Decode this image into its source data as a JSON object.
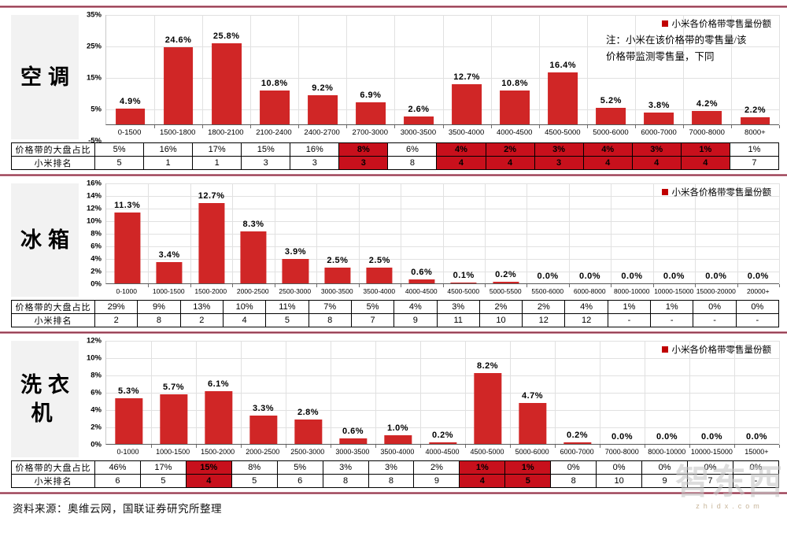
{
  "page": {
    "source_note": "资料来源：奥维云网，国联证券研究所整理",
    "watermark": "智东西",
    "watermark_sub": "zhidx.com",
    "table_row_labels": {
      "share": "价格带的大盘占比",
      "rank": "小米排名"
    },
    "colors": {
      "bar": "#d02626",
      "table_highlight": "#c8101c",
      "separator": "#7c2137",
      "gridline": "#e1e1e1"
    }
  },
  "chart_data": [
    {
      "type": "bar",
      "title": "空调",
      "legend": "小米各价格带零售量份额",
      "note": "注：小米在该价格带的零售量/该\n价格带监测零售量，下同",
      "categories": [
        "0-1500",
        "1500-1800",
        "1800-2100",
        "2100-2400",
        "2400-2700",
        "2700-3000",
        "3000-3500",
        "3500-4000",
        "4000-4500",
        "4500-5000",
        "5000-6000",
        "6000-7000",
        "7000-8000",
        "8000+"
      ],
      "values": [
        4.9,
        24.6,
        25.8,
        10.8,
        9.2,
        6.9,
        2.6,
        12.7,
        10.8,
        16.4,
        5.2,
        3.8,
        4.2,
        2.2
      ],
      "ylim": [
        -5,
        35
      ],
      "yticks": [
        "35%",
        "25%",
        "15%",
        "5%",
        "-5%"
      ],
      "grid": true,
      "legend_position": "top-right",
      "table": {
        "share": [
          "5%",
          "16%",
          "17%",
          "15%",
          "16%",
          "8%",
          "6%",
          "4%",
          "2%",
          "3%",
          "4%",
          "3%",
          "1%",
          "1%"
        ],
        "rank": [
          "5",
          "1",
          "1",
          "3",
          "3",
          "3",
          "8",
          "4",
          "4",
          "3",
          "4",
          "4",
          "4",
          "7"
        ],
        "highlight_cols": [
          5,
          7,
          8,
          9,
          10,
          11,
          12
        ]
      }
    },
    {
      "type": "bar",
      "title": "冰箱",
      "legend": "小米各价格带零售量份额",
      "note": "",
      "categories": [
        "0-1000",
        "1000-1500",
        "1500-2000",
        "2000-2500",
        "2500-3000",
        "3000-3500",
        "3500-4000",
        "4000-4500",
        "4500-5000",
        "5000-5500",
        "5500-6000",
        "6000-8000",
        "8000-10000",
        "10000-15000",
        "15000-20000",
        "20000+"
      ],
      "values": [
        11.3,
        3.4,
        12.7,
        8.3,
        3.9,
        2.5,
        2.5,
        0.6,
        0.1,
        0.2,
        0.0,
        0.0,
        0.0,
        0.0,
        0.0,
        0.0
      ],
      "ylim": [
        0,
        16
      ],
      "yticks": [
        "16%",
        "14%",
        "12%",
        "10%",
        "8%",
        "6%",
        "4%",
        "2%",
        "0%"
      ],
      "grid": true,
      "legend_position": "top-right",
      "table": {
        "share": [
          "29%",
          "9%",
          "13%",
          "10%",
          "11%",
          "7%",
          "5%",
          "4%",
          "3%",
          "2%",
          "2%",
          "4%",
          "1%",
          "1%",
          "0%",
          "0%"
        ],
        "rank": [
          "2",
          "8",
          "2",
          "4",
          "5",
          "8",
          "7",
          "9",
          "11",
          "10",
          "12",
          "12",
          "-",
          "-",
          "-",
          "-"
        ],
        "highlight_cols": []
      }
    },
    {
      "type": "bar",
      "title": "洗衣机",
      "legend": "小米各价格带零售量份额",
      "note": "",
      "categories": [
        "0-1000",
        "1000-1500",
        "1500-2000",
        "2000-2500",
        "2500-3000",
        "3000-3500",
        "3500-4000",
        "4000-4500",
        "4500-5000",
        "5000-6000",
        "6000-7000",
        "7000-8000",
        "8000-10000",
        "10000-15000",
        "15000+"
      ],
      "values": [
        5.3,
        5.7,
        6.1,
        3.3,
        2.8,
        0.6,
        1.0,
        0.2,
        8.2,
        4.7,
        0.2,
        0.0,
        0.0,
        0.0,
        0.0
      ],
      "ylim": [
        0,
        12
      ],
      "yticks": [
        "12%",
        "10%",
        "8%",
        "6%",
        "4%",
        "2%",
        "0%"
      ],
      "grid": true,
      "legend_position": "top-right",
      "table": {
        "share": [
          "46%",
          "17%",
          "15%",
          "8%",
          "5%",
          "3%",
          "3%",
          "2%",
          "1%",
          "1%",
          "0%",
          "0%",
          "0%",
          "0%",
          "0%"
        ],
        "rank": [
          "6",
          "5",
          "4",
          "5",
          "6",
          "8",
          "8",
          "9",
          "4",
          "5",
          "8",
          "10",
          "9",
          "7",
          "-"
        ],
        "highlight_cols": [
          2,
          8,
          9
        ]
      }
    }
  ]
}
